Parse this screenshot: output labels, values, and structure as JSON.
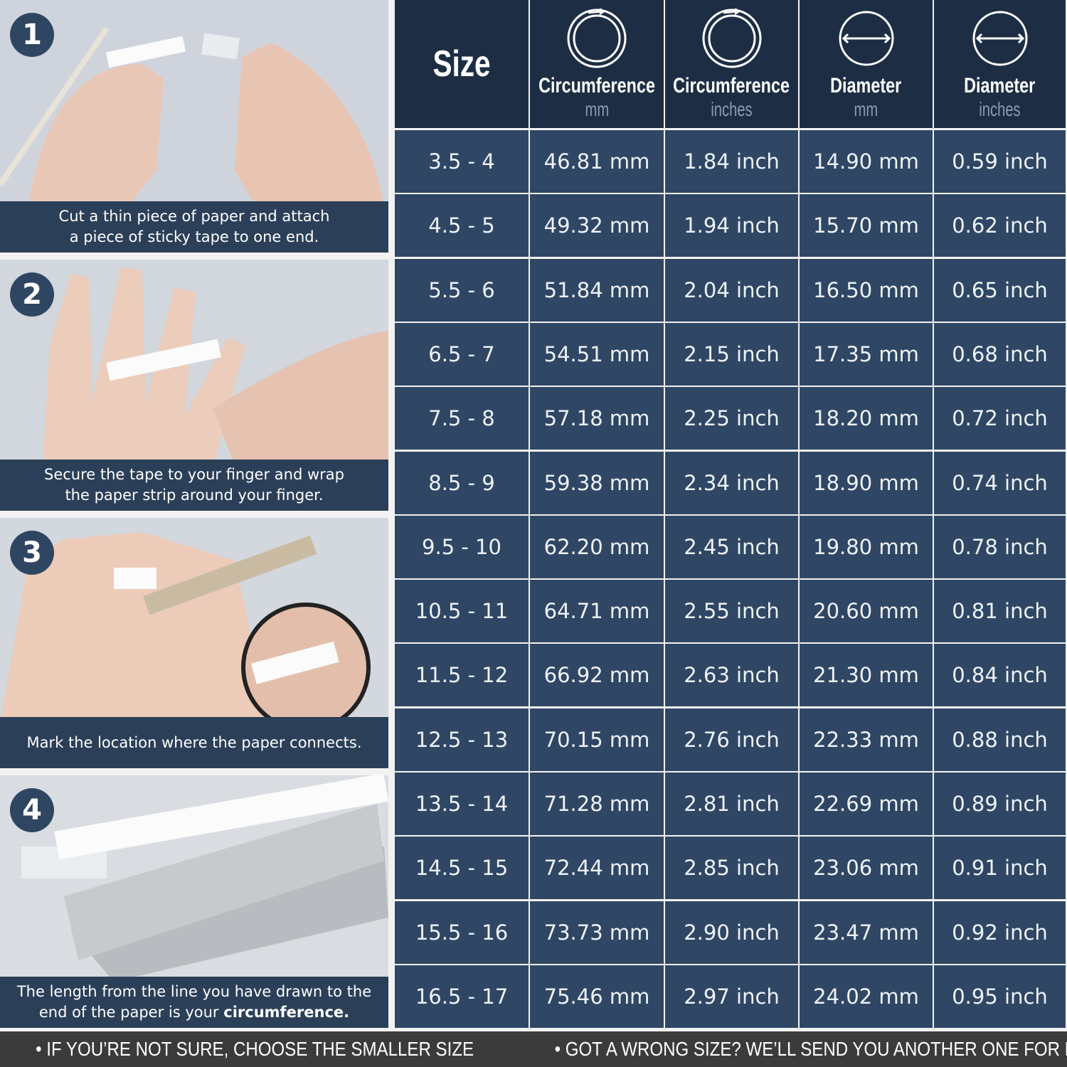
{
  "steps": [
    {
      "number": "1",
      "caption": [
        "Cut a thin piece of paper and attach",
        "a piece of sticky tape to one end."
      ]
    },
    {
      "number": "2",
      "caption": [
        "Secure the tape to your finger and wrap",
        "the paper strip around your finger."
      ]
    },
    {
      "number": "3",
      "caption": [
        "Mark the location where the paper connects."
      ]
    },
    {
      "number": "4",
      "caption": [
        "The length from the line you have drawn to the",
        "end of the paper is your "
      ],
      "caption_bold": "circumference."
    }
  ],
  "table": {
    "header": {
      "size": "Size",
      "columns": [
        {
          "title": "Circumference",
          "unit": "mm"
        },
        {
          "title": "Circumference",
          "unit": "inches"
        },
        {
          "title": "Diameter",
          "unit": "mm"
        },
        {
          "title": "Diameter",
          "unit": "inches"
        }
      ]
    },
    "rows": [
      [
        "3.5 - 4",
        "46.81 mm",
        "1.84 inch",
        "14.90 mm",
        "0.59 inch"
      ],
      [
        "4.5 - 5",
        "49.32 mm",
        "1.94 inch",
        "15.70 mm",
        "0.62 inch"
      ],
      [
        "5.5 - 6",
        "51.84 mm",
        "2.04 inch",
        "16.50 mm",
        "0.65 inch"
      ],
      [
        "6.5 - 7",
        "54.51 mm",
        "2.15 inch",
        "17.35 mm",
        "0.68 inch"
      ],
      [
        "7.5 - 8",
        "57.18 mm",
        "2.25 inch",
        "18.20 mm",
        "0.72 inch"
      ],
      [
        "8.5 - 9",
        "59.38 mm",
        "2.34 inch",
        "18.90 mm",
        "0.74 inch"
      ],
      [
        "9.5 - 10",
        "62.20 mm",
        "2.45 inch",
        "19.80 mm",
        "0.78 inch"
      ],
      [
        "10.5 - 11",
        "64.71 mm",
        "2.55 inch",
        "20.60 mm",
        "0.81 inch"
      ],
      [
        "11.5 - 12",
        "66.92 mm",
        "2.63 inch",
        "21.30 mm",
        "0.84 inch"
      ],
      [
        "12.5 - 13",
        "70.15 mm",
        "2.76 inch",
        "22.33 mm",
        "0.88 inch"
      ],
      [
        "13.5 - 14",
        "71.28 mm",
        "2.81 inch",
        "22.69 mm",
        "0.89 inch"
      ],
      [
        "14.5 - 15",
        "72.44 mm",
        "2.85 inch",
        "23.06 mm",
        "0.91 inch"
      ],
      [
        "15.5 - 16",
        "73.73 mm",
        "2.90 inch",
        "23.47 mm",
        "0.92 inch"
      ],
      [
        "16.5 - 17",
        "75.46 mm",
        "2.97 inch",
        "24.02 mm",
        "0.95 inch"
      ]
    ]
  },
  "footer": [
    "• IF YOU’RE NOT SURE, CHOOSE THE SMALLER SIZE",
    "• GOT A WRONG SIZE? WE’LL SEND YOU ANOTHER ONE FOR FREE"
  ]
}
